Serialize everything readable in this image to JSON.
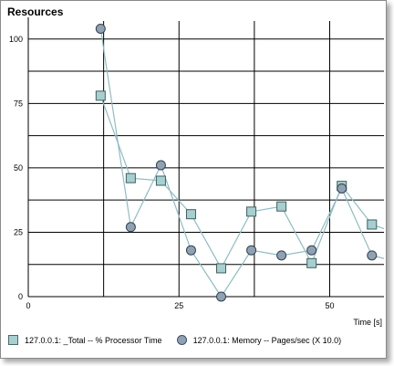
{
  "window": {
    "title": "Resources"
  },
  "chart_data": {
    "type": "line",
    "title": "Resources",
    "xlabel": "Time [s]",
    "ylabel": "",
    "xlim": [
      0,
      59
    ],
    "ylim": [
      0,
      107
    ],
    "x_ticks": [
      0,
      25,
      50
    ],
    "y_ticks": [
      0,
      25,
      50,
      75,
      100
    ],
    "grid": true,
    "legend_position": "bottom",
    "series": [
      {
        "name": "127.0.0.1: _Total -- % Processor Time",
        "marker": "square",
        "color": "#a8cfcf",
        "line_color": "#8fbcc4",
        "x": [
          12,
          17,
          22,
          27,
          32,
          37,
          42,
          47,
          52,
          57,
          62
        ],
        "y": [
          78,
          46,
          45,
          32,
          11,
          33,
          35,
          13,
          43,
          28,
          24
        ]
      },
      {
        "name": "127.0.0.1: Memory -- Pages/sec (X 10.0)",
        "marker": "circle",
        "color": "#8fa2b4",
        "line_color": "#8fbcc4",
        "x": [
          12,
          17,
          22,
          27,
          32,
          37,
          42,
          47,
          52,
          57,
          62
        ],
        "y": [
          104,
          27,
          51,
          18,
          0,
          18,
          16,
          18,
          42,
          16,
          13
        ]
      }
    ]
  }
}
